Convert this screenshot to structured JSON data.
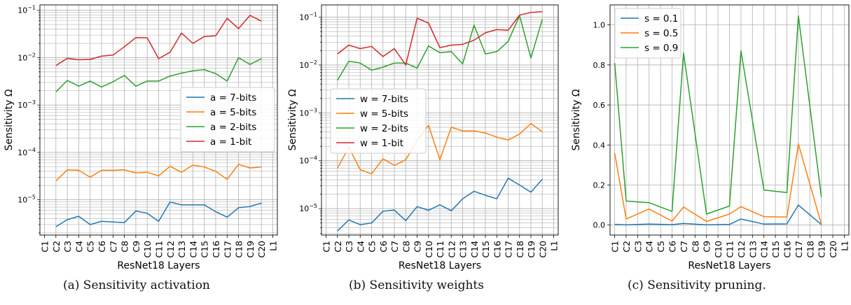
{
  "chart_data": [
    {
      "type": "line",
      "ylabel": "Sensitivity Ω",
      "xlabel": "ResNet18 Layers",
      "caption": "(a) Sensitivity activation",
      "yscale": "log",
      "ylim": [
        1.8e-06,
        0.13
      ],
      "categories": [
        "C1",
        "C2",
        "C3",
        "C4",
        "C5",
        "C6",
        "C7",
        "C8",
        "C9",
        "C10",
        "C11",
        "C12",
        "C13",
        "C14",
        "C15",
        "C16",
        "C17",
        "C18",
        "C19",
        "C20",
        "L1"
      ],
      "x": [
        "C2",
        "C3",
        "C4",
        "C5",
        "C6",
        "C7",
        "C8",
        "C9",
        "C10",
        "C11",
        "C12",
        "C13",
        "C14",
        "C15",
        "C16",
        "C17",
        "C18",
        "C19",
        "C20"
      ],
      "ytick_labels": [
        {
          "value": 1e-05,
          "base": "10",
          "exp": "−5"
        },
        {
          "value": 0.0001,
          "base": "10",
          "exp": "−4"
        },
        {
          "value": 0.001,
          "base": "10",
          "exp": "−3"
        },
        {
          "value": 0.01,
          "base": "10",
          "exp": "−2"
        },
        {
          "value": 0.1,
          "base": "10",
          "exp": "−1"
        }
      ],
      "grid": true,
      "legend_position": "center-right",
      "series": [
        {
          "name": "a = 7-bits",
          "color": "#1f77b4",
          "values": [
            2.7e-06,
            3.8e-06,
            4.5e-06,
            3e-06,
            3.5e-06,
            3.4e-06,
            3.3e-06,
            5.8e-06,
            5.2e-06,
            3.5e-06,
            9e-06,
            7.8e-06,
            7.8e-06,
            7.8e-06,
            5.6e-06,
            4.3e-06,
            6.8e-06,
            7.2e-06,
            8.5e-06
          ]
        },
        {
          "name": "a = 5-bits",
          "color": "#ff7f0e",
          "values": [
            2.5e-05,
            4.3e-05,
            4.2e-05,
            3e-05,
            4.2e-05,
            4.2e-05,
            4.3e-05,
            3.7e-05,
            3.8e-05,
            3.2e-05,
            5.1e-05,
            3.8e-05,
            5.4e-05,
            4.9e-05,
            4e-05,
            2.7e-05,
            5.6e-05,
            4.7e-05,
            4.9e-05
          ]
        },
        {
          "name": "a = 2-bits",
          "color": "#2ca02c",
          "values": [
            0.0019,
            0.0033,
            0.0025,
            0.0032,
            0.0024,
            0.0031,
            0.0042,
            0.0025,
            0.0032,
            0.0032,
            0.0041,
            0.0047,
            0.0053,
            0.0056,
            0.0046,
            0.0032,
            0.01,
            0.0072,
            0.0095
          ]
        },
        {
          "name": "a = 1-bit",
          "color": "#d62728",
          "values": [
            0.0068,
            0.0097,
            0.009,
            0.0092,
            0.0108,
            0.0113,
            0.017,
            0.0265,
            0.0262,
            0.0095,
            0.013,
            0.033,
            0.02,
            0.028,
            0.029,
            0.068,
            0.041,
            0.078,
            0.059
          ]
        }
      ]
    },
    {
      "type": "line",
      "ylabel": "Sensitivity Ω",
      "xlabel": "ResNet18 Layers",
      "caption": "(b) Sensitivity weights",
      "yscale": "log",
      "ylim": [
        2.8e-06,
        0.18
      ],
      "categories": [
        "C1",
        "C2",
        "C3",
        "C4",
        "C5",
        "C6",
        "C7",
        "C8",
        "C9",
        "C10",
        "C11",
        "C12",
        "C13",
        "C14",
        "C15",
        "C16",
        "C17",
        "C18",
        "C19",
        "C20",
        "L1"
      ],
      "x": [
        "C2",
        "C3",
        "C4",
        "C5",
        "C6",
        "C7",
        "C8",
        "C9",
        "C10",
        "C11",
        "C12",
        "C13",
        "C14",
        "C15",
        "C16",
        "C17",
        "C18",
        "C19",
        "C20"
      ],
      "ytick_labels": [
        {
          "value": 1e-05,
          "base": "10",
          "exp": "−5"
        },
        {
          "value": 0.0001,
          "base": "10",
          "exp": "−4"
        },
        {
          "value": 0.001,
          "base": "10",
          "exp": "−3"
        },
        {
          "value": 0.01,
          "base": "10",
          "exp": "−2"
        },
        {
          "value": 0.1,
          "base": "10",
          "exp": "−1"
        }
      ],
      "grid": true,
      "legend_position": "upper-left",
      "series": [
        {
          "name": "w = 7-bits",
          "color": "#1f77b4",
          "values": [
            3.4e-06,
            5.8e-06,
            4.6e-06,
            5e-06,
            8.8e-06,
            9.3e-06,
            5.6e-06,
            1.1e-05,
            9.2e-06,
            1.2e-05,
            9e-06,
            1.6e-05,
            2.3e-05,
            1.9e-05,
            1.6e-05,
            4.3e-05,
            3.1e-05,
            2.2e-05,
            4.1e-05
          ]
        },
        {
          "name": "w = 5-bits",
          "color": "#ff7f0e",
          "values": [
            7e-05,
            0.00019,
            6.5e-05,
            5.3e-05,
            0.00011,
            8e-05,
            0.000105,
            0.00026,
            0.00055,
            0.000105,
            0.0005,
            0.00042,
            0.00042,
            0.00038,
            0.00031,
            0.00027,
            0.00036,
            0.0006,
            0.0004
          ]
        },
        {
          "name": "w = 2-bits",
          "color": "#2ca02c",
          "values": [
            0.0048,
            0.012,
            0.011,
            0.0078,
            0.009,
            0.011,
            0.011,
            0.0086,
            0.025,
            0.018,
            0.019,
            0.0105,
            0.068,
            0.017,
            0.019,
            0.031,
            0.108,
            0.014,
            0.09
          ]
        },
        {
          "name": "w = 1-bit",
          "color": "#d62728",
          "values": [
            0.017,
            0.026,
            0.022,
            0.0245,
            0.015,
            0.022,
            0.01,
            0.095,
            0.075,
            0.023,
            0.026,
            0.027,
            0.033,
            0.047,
            0.055,
            0.053,
            0.11,
            0.125,
            0.13
          ]
        }
      ]
    },
    {
      "type": "line",
      "ylabel": "Sensitivity Ω",
      "xlabel": "ResNet18 Layers",
      "caption": "(c) Sensitivity pruning.",
      "yscale": "linear",
      "ylim": [
        -0.05,
        1.1
      ],
      "yticks": [
        0.0,
        0.2,
        0.4,
        0.6,
        0.8,
        1.0
      ],
      "ytick_labels": [
        "0.0",
        "0.2",
        "0.4",
        "0.6",
        "0.8",
        "1.0"
      ],
      "categories": [
        "C1",
        "C2",
        "C3",
        "C4",
        "C5",
        "C6",
        "C7",
        "C8",
        "C9",
        "C10",
        "C11",
        "C12",
        "C13",
        "C14",
        "C15",
        "C16",
        "C17",
        "C18",
        "C19",
        "C20",
        "L1"
      ],
      "x": [
        "C1",
        "C2",
        "C4",
        "C6",
        "C7",
        "C9",
        "C11",
        "C12",
        "C14",
        "C16",
        "C17",
        "C19"
      ],
      "grid": true,
      "legend_position": "upper-left",
      "series": [
        {
          "name": "s = 0.1",
          "color": "#1f77b4",
          "values": [
            0.003,
            0.001,
            0.005,
            0.002,
            0.008,
            0.001,
            0.003,
            0.03,
            0.005,
            0.006,
            0.1,
            0.002
          ]
        },
        {
          "name": "s = 0.5",
          "color": "#ff7f0e",
          "values": [
            0.36,
            0.03,
            0.08,
            0.02,
            0.09,
            0.018,
            0.055,
            0.092,
            0.042,
            0.04,
            0.405,
            0.004
          ]
        },
        {
          "name": "s = 0.9",
          "color": "#2ca02c",
          "values": [
            0.81,
            0.12,
            0.112,
            0.068,
            0.86,
            0.055,
            0.095,
            0.87,
            0.175,
            0.162,
            1.045,
            0.14
          ]
        }
      ]
    }
  ]
}
